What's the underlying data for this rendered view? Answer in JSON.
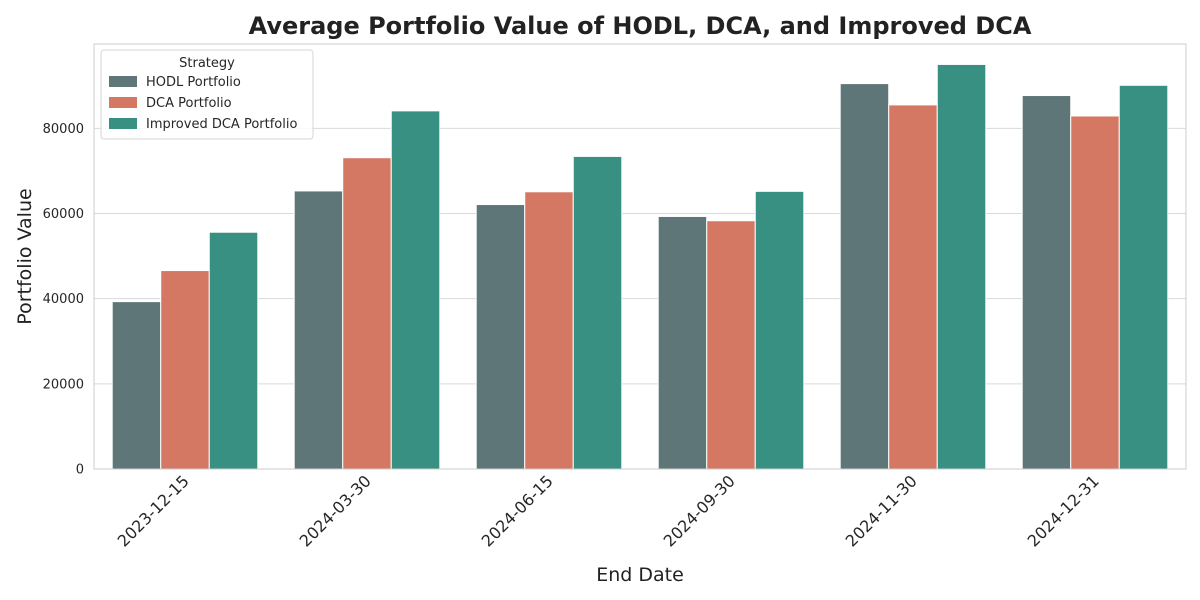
{
  "chart_data": {
    "type": "bar",
    "title": "Average Portfolio Value of HODL, DCA, and Improved DCA",
    "xlabel": "End Date",
    "ylabel": "Portfolio Value",
    "categories": [
      "2023-12-15",
      "2024-03-30",
      "2024-06-15",
      "2024-09-30",
      "2024-11-30",
      "2024-12-31"
    ],
    "series": [
      {
        "name": "HODL Portfolio",
        "color": "#5e7677",
        "values": [
          39300,
          65300,
          62100,
          59300,
          90500,
          87700
        ]
      },
      {
        "name": "DCA Portfolio",
        "color": "#d47864",
        "values": [
          46600,
          73100,
          65100,
          58300,
          85500,
          82900
        ]
      },
      {
        "name": "Improved DCA Portfolio",
        "color": "#389083",
        "values": [
          55600,
          84100,
          73400,
          65200,
          95000,
          90100
        ]
      }
    ],
    "ylim": [
      0,
      99800
    ],
    "yticks": [
      0,
      20000,
      40000,
      60000,
      80000
    ],
    "ytick_labels": [
      "0",
      "20000",
      "40000",
      "60000",
      "80000"
    ],
    "grid": "horizontal",
    "legend": {
      "title": "Strategy",
      "placement": "top-left"
    }
  }
}
